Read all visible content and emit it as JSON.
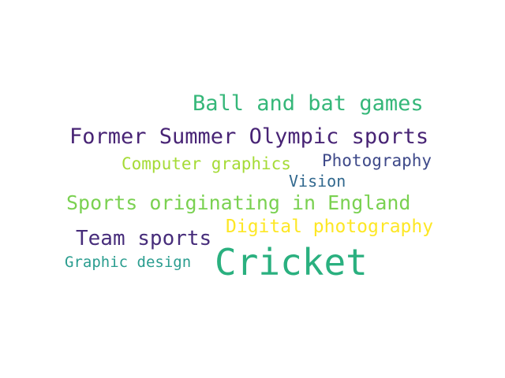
{
  "words": [
    {
      "text": "Ball and bat games",
      "color": "#35b779"
    },
    {
      "text": "Former Summer Olympic sports",
      "color": "#482475"
    },
    {
      "text": "Computer graphics",
      "color": "#a5db36"
    },
    {
      "text": "Photography",
      "color": "#3e4989"
    },
    {
      "text": "Vision",
      "color": "#31688e"
    },
    {
      "text": "Sports originating in England",
      "color": "#7ad151"
    },
    {
      "text": "Digital photography",
      "color": "#fde725"
    },
    {
      "text": "Team sports",
      "color": "#472d7b"
    },
    {
      "text": "Graphic design",
      "color": "#2a9d8f"
    },
    {
      "text": "Cricket",
      "color": "#2ab07f"
    }
  ]
}
